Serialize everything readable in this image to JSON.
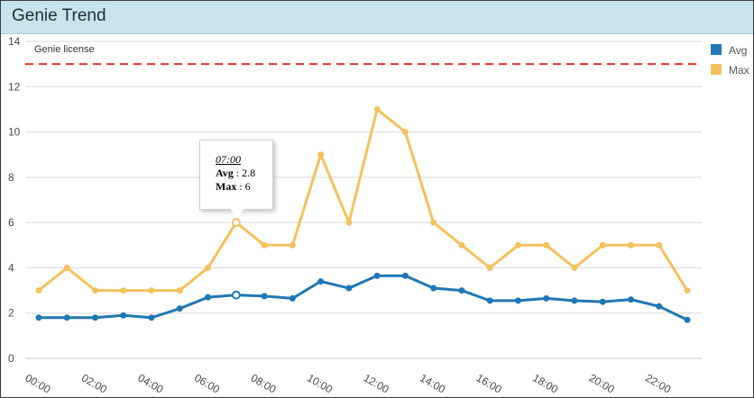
{
  "panel": {
    "title": "Genie Trend"
  },
  "tooltip": {
    "time": "07:00",
    "rows": [
      {
        "label": "Avg",
        "value": "2.8"
      },
      {
        "label": "Max",
        "value": "6"
      }
    ]
  },
  "chart_data": {
    "type": "line",
    "title": "Genie Trend",
    "x": [
      "00:00",
      "01:00",
      "02:00",
      "03:00",
      "04:00",
      "05:00",
      "06:00",
      "07:00",
      "08:00",
      "09:00",
      "10:00",
      "11:00",
      "12:00",
      "13:00",
      "14:00",
      "15:00",
      "16:00",
      "17:00",
      "18:00",
      "19:00",
      "20:00",
      "21:00",
      "22:00",
      "23:00"
    ],
    "x_tick_labels": [
      "00:00",
      "02:00",
      "04:00",
      "06:00",
      "08:00",
      "10:00",
      "12:00",
      "14:00",
      "16:00",
      "18:00",
      "20:00",
      "22:00"
    ],
    "y_ticks": [
      "0",
      "2",
      "4",
      "6",
      "8",
      "10",
      "12",
      "14"
    ],
    "ylim": [
      0,
      14
    ],
    "grid": true,
    "legend_position": "top-right",
    "series": [
      {
        "name": "Avg",
        "color": "#1f77b4",
        "values": [
          1.8,
          1.8,
          1.8,
          1.9,
          1.8,
          2.2,
          2.7,
          2.8,
          2.75,
          2.65,
          3.4,
          3.1,
          3.65,
          3.65,
          3.1,
          3.0,
          2.55,
          2.55,
          2.65,
          2.55,
          2.5,
          2.6,
          2.3,
          1.7
        ]
      },
      {
        "name": "Max",
        "color": "#f5c15c",
        "values": [
          3,
          4,
          3,
          3,
          3,
          3,
          4,
          6,
          5,
          5,
          9,
          6,
          11,
          10,
          6,
          5,
          4,
          5,
          5,
          4,
          5,
          5,
          5,
          3
        ]
      }
    ],
    "reference_line": {
      "label": "Genie license",
      "value": 13,
      "color": "#e8302a"
    }
  }
}
